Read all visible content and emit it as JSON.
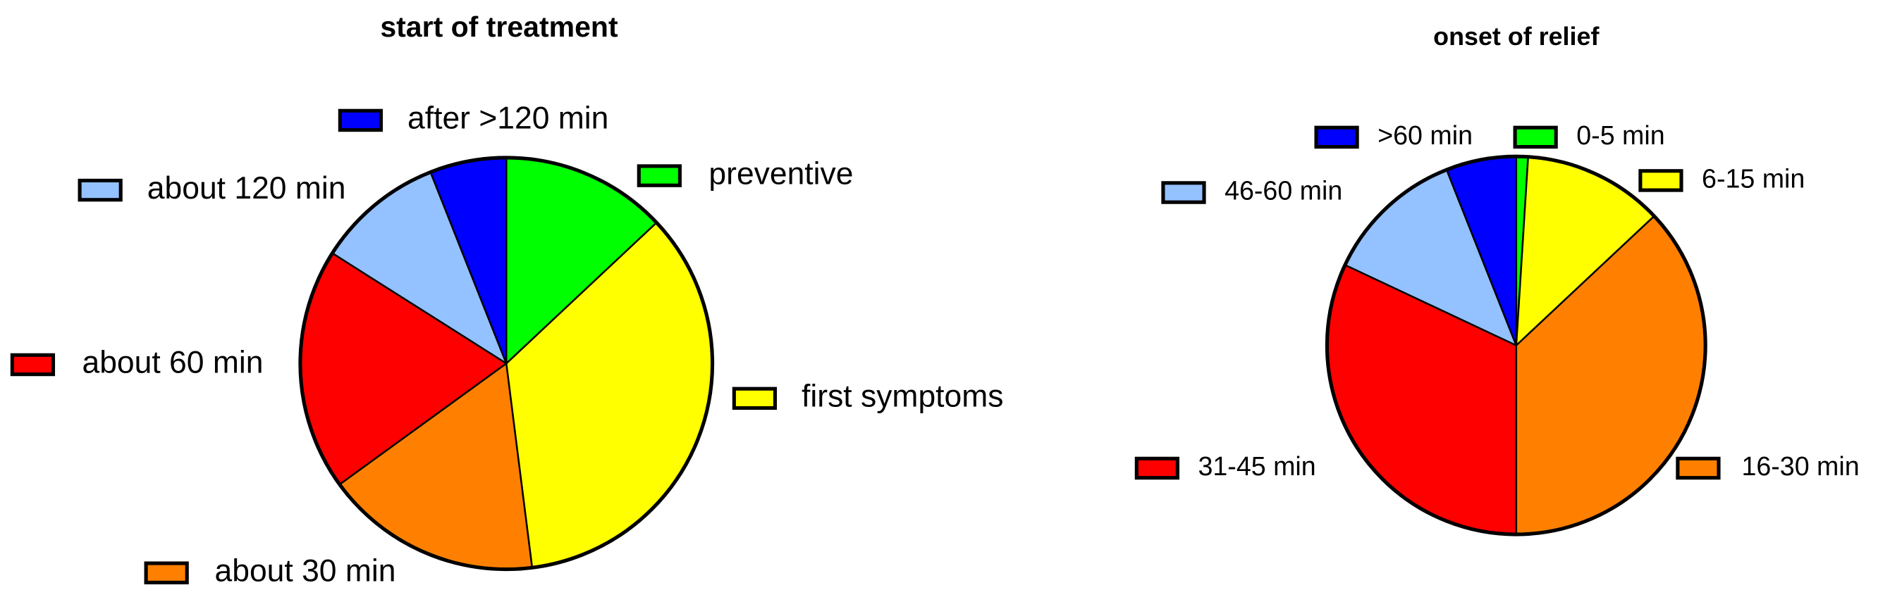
{
  "chart_data": [
    {
      "type": "pie",
      "title": "start of treatment",
      "categories": [
        "preventive",
        "first symptoms",
        "about 30 min",
        "about 60 min",
        "about 120 min",
        "after >120 min"
      ],
      "values": [
        13,
        35,
        17,
        19,
        10,
        6
      ],
      "colors": [
        "#00ff00",
        "#ffff00",
        "#ff8000",
        "#ff0000",
        "#94c1ff",
        "#0000ff"
      ]
    },
    {
      "type": "pie",
      "title": "onset of relief",
      "categories": [
        "0-5 min",
        "6-15 min",
        "16-30 min",
        "31-45 min",
        "46-60 min",
        ">60 min"
      ],
      "values": [
        1,
        12,
        37,
        32,
        12,
        6
      ],
      "colors": [
        "#00ff00",
        "#ffff00",
        "#ff8000",
        "#ff0000",
        "#94c1ff",
        "#0000ff"
      ]
    }
  ]
}
